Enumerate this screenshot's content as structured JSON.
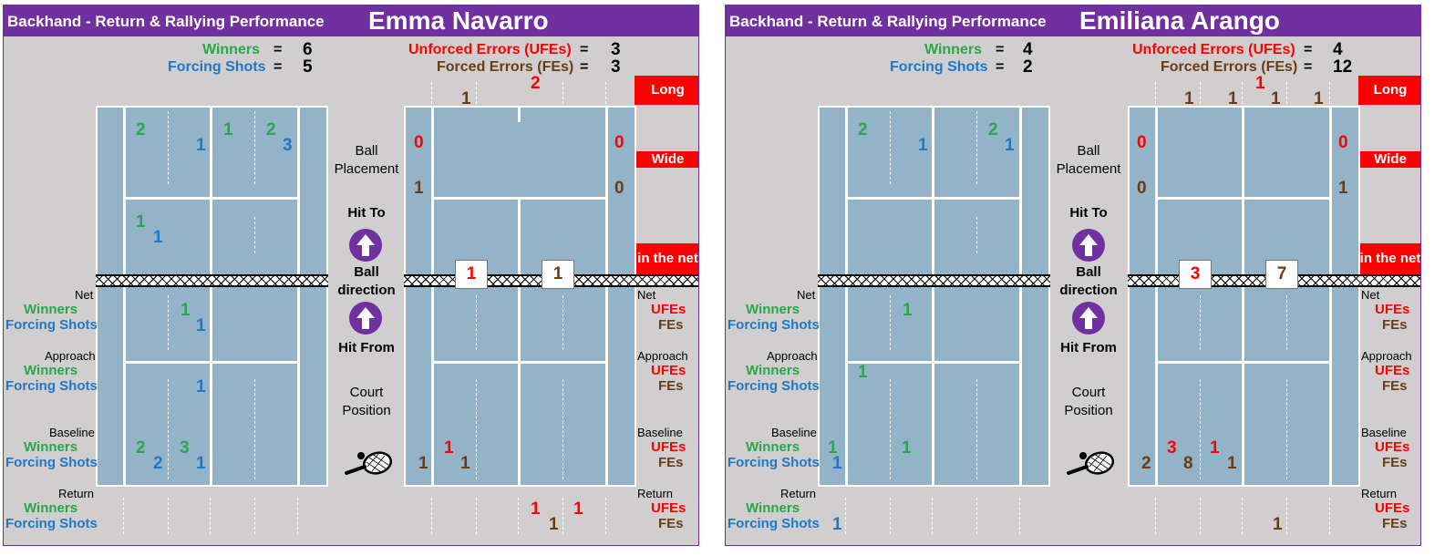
{
  "colors": {
    "purple": "#7030a0",
    "green": "#2aa74a",
    "blue": "#1f78c8",
    "red": "#ff0000",
    "brown": "#6b3d16",
    "court": "#93b3c8"
  },
  "labels": {
    "subtitle": "Backhand - Return & Rallying Performance",
    "winners": "Winners",
    "forcing_shots": "Forcing Shots",
    "ufes": "Unforced Errors (UFEs)",
    "fes": "Forced Errors (FEs)",
    "eq": "=",
    "long": "Long",
    "wide": "Wide",
    "in_the_net": "in the net",
    "ball_placement_1": "Ball",
    "ball_placement_2": "Placement",
    "hit_to": "Hit To",
    "ball_direction_1": "Ball",
    "ball_direction_2": "direction",
    "hit_from": "Hit From",
    "court_position_1": "Court",
    "court_position_2": "Position",
    "net": "Net",
    "approach": "Approach",
    "baseline": "Baseline",
    "return": "Return",
    "ufes_short": "UFEs",
    "fes_short": "FEs",
    "racket_icon": "racket-icon",
    "arrow_icon": "arrow-up-icon"
  },
  "players": [
    {
      "name": "Emma Navarro",
      "winners": "6",
      "forcing": "5",
      "ufes": "3",
      "fes": "3",
      "long": {
        "b1": "",
        "b2": "1",
        "b3": "2",
        "b4": ""
      },
      "long_top": {
        "b3": "2"
      },
      "side_ufe_left": "0",
      "side_ufe_right": "0",
      "side_fe_left": "1",
      "side_fe_right": "0",
      "net_ufe": "1",
      "net_fe": "1",
      "deep": {
        "g1": "2",
        "g2": "1",
        "g3": "2",
        "b1": "1",
        "b2": "3"
      },
      "mid": {
        "g": "1",
        "b": "1"
      },
      "net_row": {
        "g": "1",
        "b": "1"
      },
      "approach_row": {
        "g": "",
        "b": "1"
      },
      "baseline_row": {
        "g1": "2",
        "g2": "3",
        "b1": "2",
        "b2": "1"
      },
      "return_row": {
        "g": "",
        "b": ""
      },
      "err_base": {
        "fe1": "1",
        "ufe": "1",
        "fe2": "1",
        "fe3": ""
      },
      "err_return": {
        "ufe1": "1",
        "fe": "1",
        "ufe2": "1"
      }
    },
    {
      "name": "Emiliana Arango",
      "winners": "4",
      "forcing": "2",
      "ufes": "4",
      "fes": "12",
      "long": {
        "b1": "1",
        "b2": "1",
        "b3": "1",
        "b4": "1"
      },
      "long_top": {
        "b3": "1"
      },
      "side_ufe_left": "0",
      "side_ufe_right": "0",
      "side_fe_left": "0",
      "side_fe_right": "1",
      "net_ufe": "3",
      "net_fe": "7",
      "deep": {
        "g1": "2",
        "g2": "",
        "g3": "2",
        "b1": "1",
        "b2": "1"
      },
      "mid": {
        "g": "",
        "b": ""
      },
      "net_row": {
        "g": "1",
        "b": ""
      },
      "approach_row": {
        "g": "1",
        "b": ""
      },
      "baseline_row": {
        "g1": "1",
        "g2": "1",
        "b1": "1",
        "b2": ""
      },
      "return_row": {
        "g": "",
        "b": "1"
      },
      "err_base": {
        "fe1": "2",
        "ufe": "3",
        "fe2": "8",
        "ufe2": "1",
        "fe3": "1"
      },
      "err_return": {
        "ufe1": "",
        "fe": "1",
        "ufe2": ""
      }
    }
  ]
}
